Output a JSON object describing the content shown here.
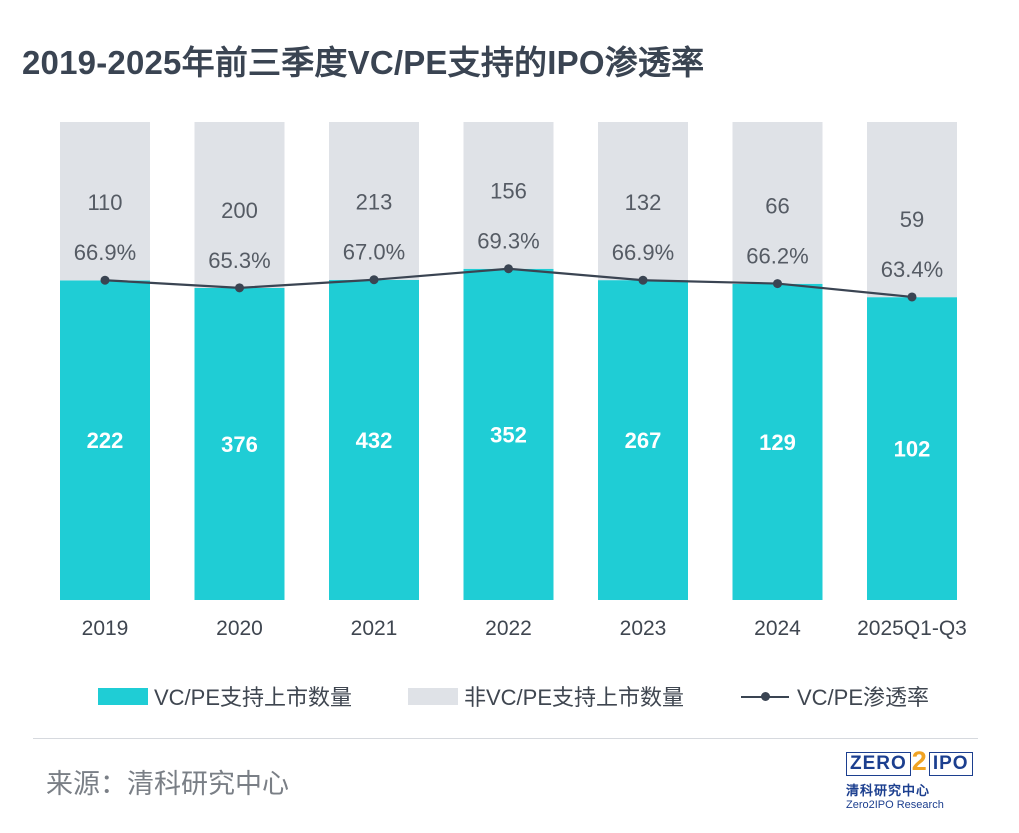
{
  "title": "2019-2025年前三季度VC/PE支持的IPO渗透率",
  "chart_data": {
    "type": "bar",
    "stacked": true,
    "categories": [
      "2019",
      "2020",
      "2021",
      "2022",
      "2023",
      "2024",
      "2025Q1-Q3"
    ],
    "series": [
      {
        "name": "VC/PE支持上市数量",
        "values": [
          222,
          376,
          432,
          352,
          267,
          129,
          102
        ],
        "color": "#1fcdd5"
      },
      {
        "name": "非VC/PE支持上市数量",
        "values": [
          110,
          200,
          213,
          156,
          132,
          66,
          59
        ],
        "color": "#dfe2e7"
      }
    ],
    "line_series": {
      "name": "VC/PE渗透率",
      "values": [
        66.9,
        65.3,
        67.0,
        69.3,
        66.9,
        66.2,
        63.4
      ],
      "labels": [
        "66.9%",
        "65.3%",
        "67.0%",
        "69.3%",
        "66.9%",
        "66.2%",
        "63.4%"
      ],
      "color": "#3a4452"
    },
    "normalized_to_100_percent": true,
    "grid": false,
    "legend_position": "bottom"
  },
  "source": "来源：清科研究中心",
  "logo": {
    "left": "ZERO",
    "two": "2",
    "right": "IPO",
    "cn": "清科研究中心",
    "en": "Zero2IPO Research"
  }
}
